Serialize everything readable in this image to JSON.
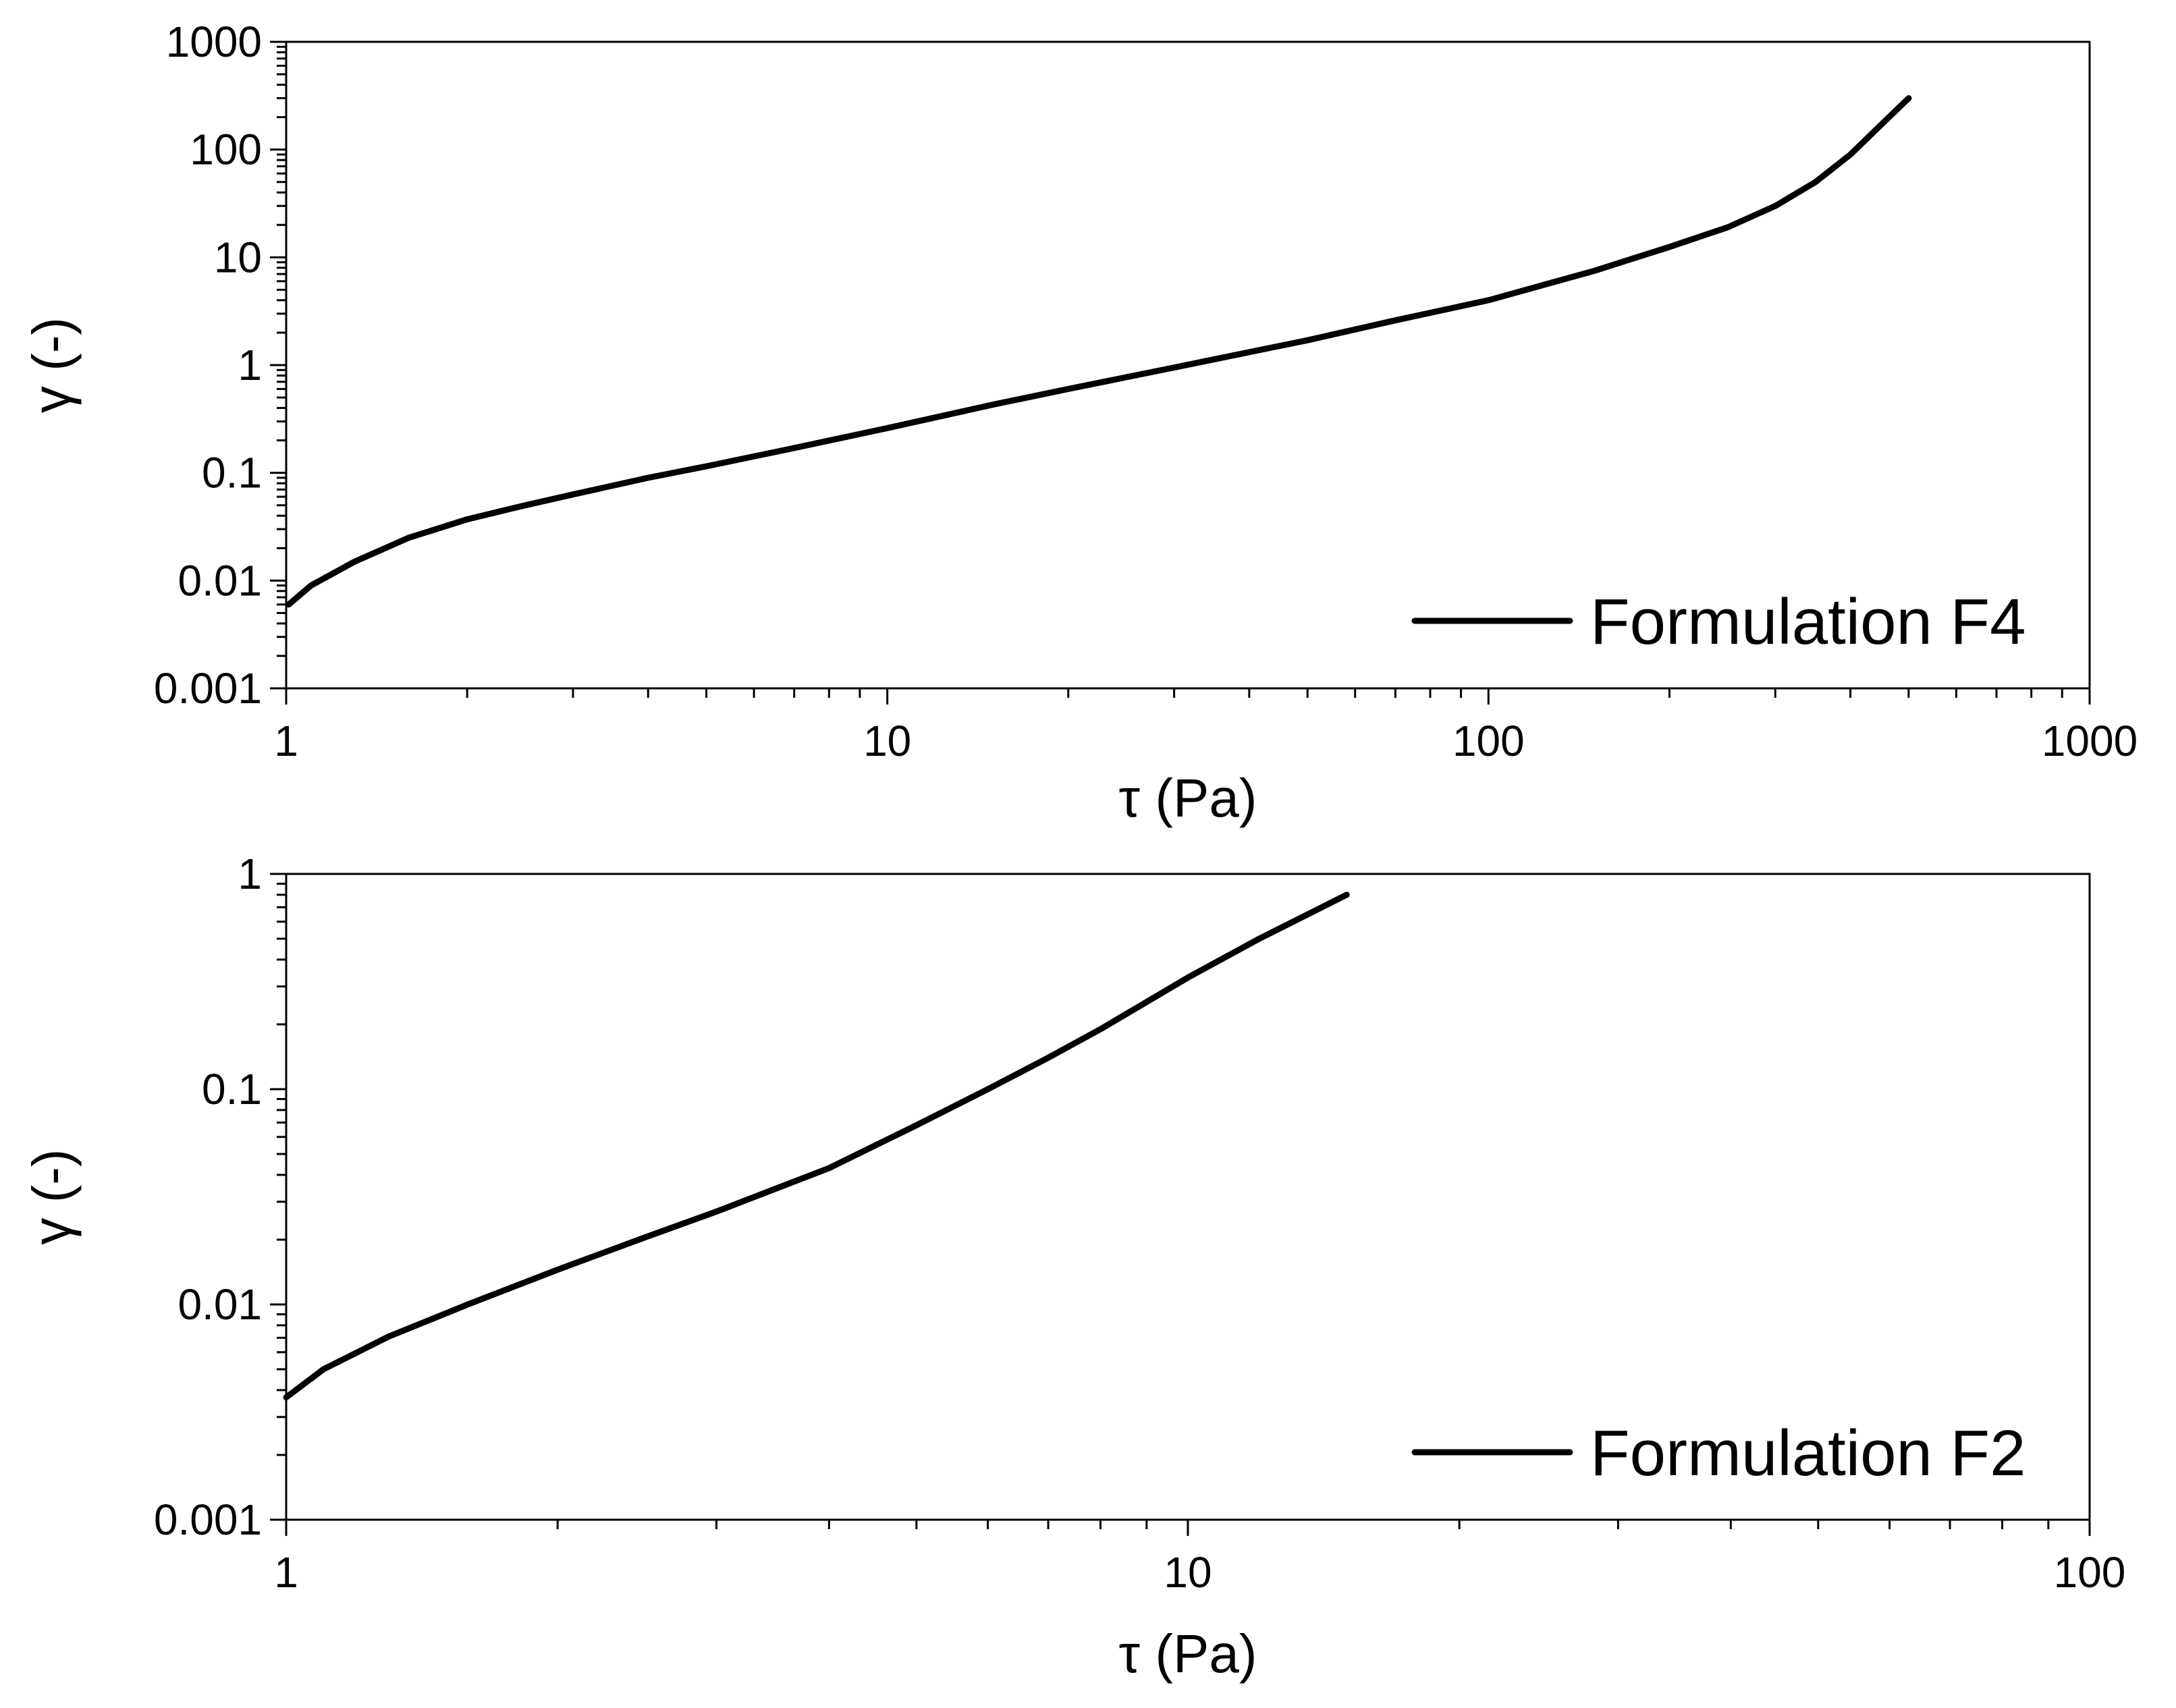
{
  "chart_data": [
    {
      "type": "line",
      "x_scale": "log",
      "y_scale": "log",
      "xlim": [
        1,
        1000
      ],
      "ylim": [
        0.001,
        1000
      ],
      "xlabel": "τ (Pa)",
      "ylabel": "γ (-)",
      "x_ticks": [
        "1",
        "10",
        "100",
        "1000"
      ],
      "y_ticks": [
        "0.001",
        "0.01",
        "0.1",
        "1",
        "10",
        "100",
        "1000"
      ],
      "grid": false,
      "legend_position": "bottom-right",
      "series": [
        {
          "name": "Formulation F4",
          "color": "#000000",
          "x": [
            1.01,
            1.1,
            1.3,
            1.6,
            2,
            2.5,
            3,
            4,
            5,
            7,
            10,
            15,
            20,
            30,
            50,
            70,
            100,
            150,
            200,
            250,
            300,
            350,
            400,
            450,
            500
          ],
          "y": [
            0.006,
            0.009,
            0.015,
            0.025,
            0.037,
            0.05,
            0.063,
            0.09,
            0.115,
            0.17,
            0.26,
            0.43,
            0.6,
            0.95,
            1.7,
            2.6,
            4.0,
            7.5,
            12.5,
            19,
            30,
            50,
            90,
            170,
            300
          ]
        }
      ]
    },
    {
      "type": "line",
      "x_scale": "log",
      "y_scale": "log",
      "xlim": [
        1,
        100
      ],
      "ylim": [
        0.001,
        1
      ],
      "xlabel": "τ (Pa)",
      "ylabel": "γ (-)",
      "x_ticks": [
        "1",
        "10",
        "100"
      ],
      "y_ticks": [
        "0.001",
        "0.01",
        "0.1",
        "1"
      ],
      "grid": false,
      "legend_position": "bottom-right",
      "series": [
        {
          "name": "Formulation F2",
          "color": "#000000",
          "x": [
            1.0,
            1.1,
            1.3,
            1.6,
            2,
            2.5,
            3,
            4,
            5,
            6,
            7,
            8,
            10,
            12,
            15
          ],
          "y": [
            0.0037,
            0.005,
            0.0071,
            0.0101,
            0.0145,
            0.0205,
            0.027,
            0.043,
            0.068,
            0.1,
            0.14,
            0.19,
            0.33,
            0.5,
            0.8
          ]
        }
      ]
    }
  ]
}
